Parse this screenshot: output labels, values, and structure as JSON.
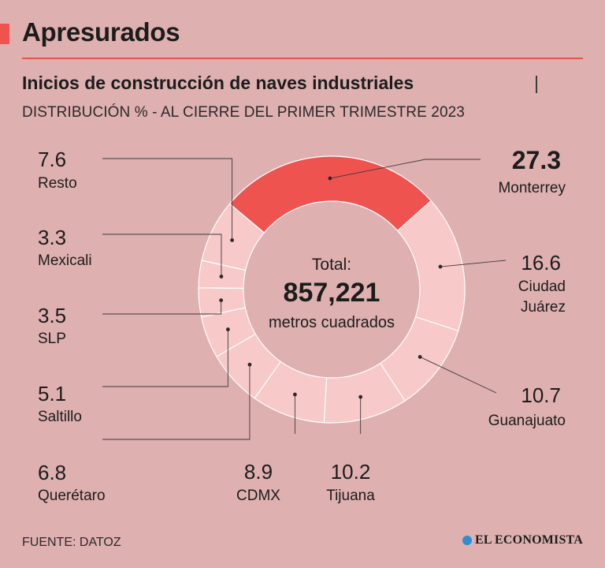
{
  "header": {
    "headline": "Apresurados",
    "title": "Inicios de construcción de naves industriales",
    "title_separator": "|",
    "subtitle": "DISTRIBUCIÓN % - AL CIERRE DEL PRIMER TRIMESTRE 2023"
  },
  "colors": {
    "background": "#dfb0b0",
    "accent": "#ef5350",
    "segment": "#f8c9c9",
    "highlight": "#ef5350",
    "line": "#3a3a3a"
  },
  "chart_data": {
    "type": "pie",
    "variant": "donut",
    "center_label": "Total:",
    "center_value": "857,221",
    "center_unit": "metros cuadrados",
    "categories": [
      "Monterrey",
      "Ciudad Juárez",
      "Guanajuato",
      "Tijuana",
      "CDMX",
      "Querétaro",
      "Saltillo",
      "SLP",
      "Mexicali",
      "Resto"
    ],
    "values": [
      27.3,
      16.6,
      10.7,
      10.2,
      8.9,
      6.8,
      5.1,
      3.5,
      3.3,
      7.6
    ],
    "value_labels": [
      "27.3",
      "16.6",
      "10.7",
      "10.2",
      "8.9",
      "6.8",
      "5.1",
      "3.5",
      "3.3",
      "7.6"
    ],
    "label_lines": [
      [
        "Monterrey"
      ],
      [
        "Ciudad",
        "Juárez"
      ],
      [
        "Guanajuato"
      ],
      [
        "Tijuana"
      ],
      [
        "CDMX"
      ],
      [
        "Querétaro"
      ],
      [
        "Saltillo"
      ],
      [
        "SLP"
      ],
      [
        "Mexicali"
      ],
      [
        "Resto"
      ]
    ],
    "highlight": "Monterrey",
    "unit": "%"
  },
  "footer": {
    "source": "FUENTE: DATOZ",
    "brand": "EL ECONOMISTA",
    "brand_icon": "el-economista-logo-icon"
  }
}
